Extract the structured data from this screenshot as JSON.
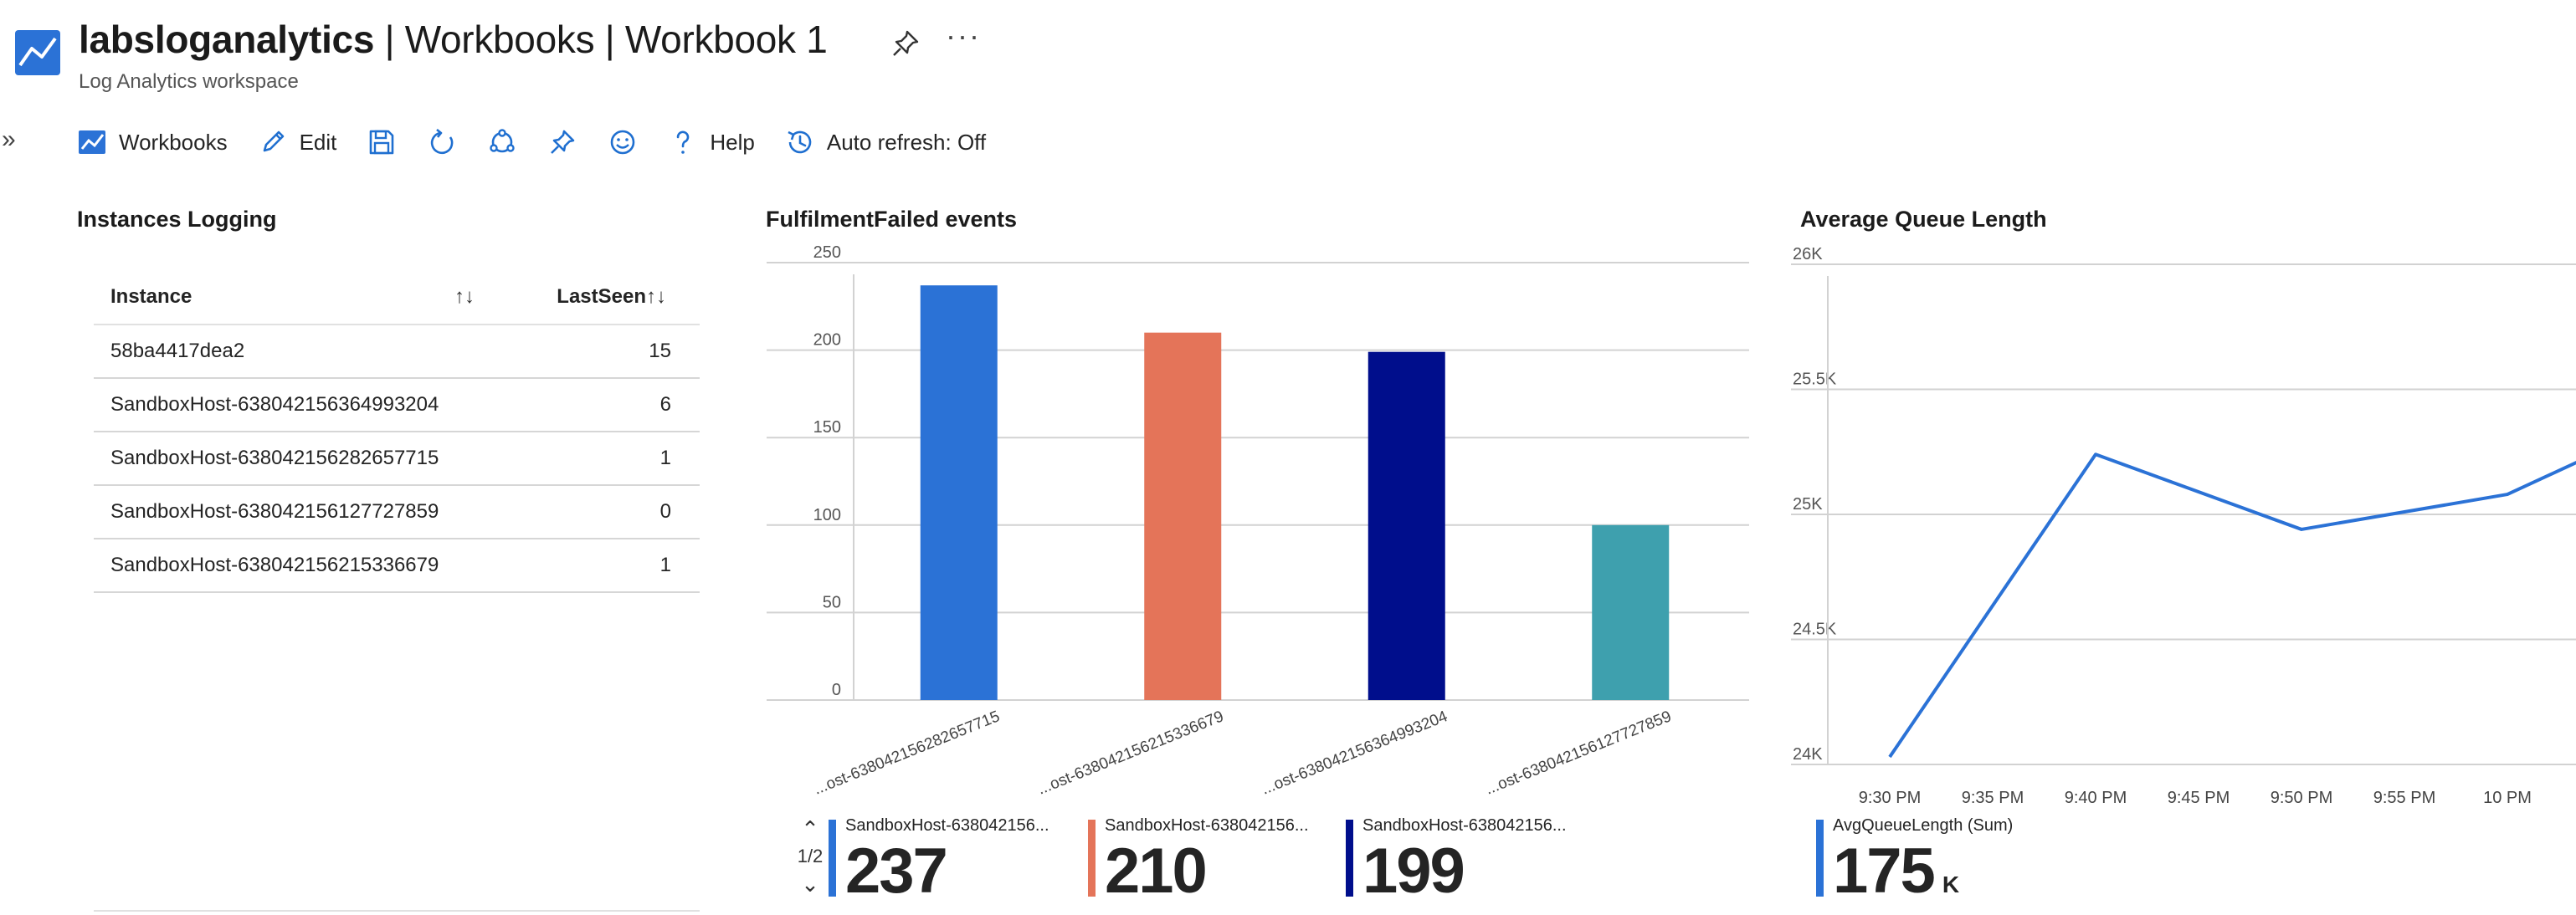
{
  "header": {
    "title_bold": "labsloganalytics",
    "title_rest": " | Workbooks | Workbook 1",
    "more": "···",
    "subtitle": "Log Analytics workspace"
  },
  "toolbar": {
    "collapse": "»",
    "workbooks_label": "Workbooks",
    "edit_label": "Edit",
    "help_label": "Help",
    "auto_refresh_label": "Auto refresh: Off"
  },
  "instances_panel": {
    "title": "Instances Logging",
    "columns": [
      "Instance",
      "LastSeen"
    ],
    "sort_glyph": "↑↓",
    "rows": [
      {
        "instance": "58ba4417dea2",
        "last_seen": "15"
      },
      {
        "instance": "SandboxHost-638042156364993204",
        "last_seen": "6"
      },
      {
        "instance": "SandboxHost-638042156282657715",
        "last_seen": "1"
      },
      {
        "instance": "SandboxHost-638042156127727859",
        "last_seen": "0"
      },
      {
        "instance": "SandboxHost-638042156215336679",
        "last_seen": "1"
      }
    ]
  },
  "fulfilment_panel": {
    "title": "FulfilmentFailed events",
    "pager": {
      "up": "⌃",
      "text": "1/2",
      "down": "⌄"
    },
    "tiles": [
      {
        "label": "SandboxHost-638042156...",
        "value": "237",
        "color": "#2b72d6"
      },
      {
        "label": "SandboxHost-638042156...",
        "value": "210",
        "color": "#e47459"
      },
      {
        "label": "SandboxHost-638042156...",
        "value": "199",
        "color": "#000e8c"
      }
    ]
  },
  "queue_panel": {
    "title": "Average Queue Length",
    "tile": {
      "label": "AvgQueueLength (Sum)",
      "value": "175",
      "unit": "K",
      "color": "#2b72d6"
    }
  },
  "chart_data": [
    {
      "type": "bar",
      "title": "FulfilmentFailed events",
      "categories": [
        "SandboxHost-638042156282657715",
        "SandboxHost-638042156215336679",
        "SandboxHost-638042156364993204",
        "SandboxHost-638042156127727859"
      ],
      "category_labels": [
        "...ost-638042156282657715",
        "...ost-638042156215336679",
        "...ost-638042156364993204",
        "...ost-638042156127727859"
      ],
      "values": [
        237,
        210,
        199,
        100
      ],
      "colors": [
        "#2b72d6",
        "#e47459",
        "#000e8c",
        "#3ea0ae"
      ],
      "yticks": [
        "0",
        "50",
        "100",
        "150",
        "200",
        "250"
      ],
      "ylim": [
        0,
        250
      ],
      "grid": true
    },
    {
      "type": "line",
      "title": "Average Queue Length",
      "series": [
        {
          "x": [
            "9:30 PM",
            "9:40 PM",
            "9:50 PM",
            "10 PM",
            "10:05 PM"
          ],
          "x_minutes": [
            0,
            10,
            20,
            30,
            35
          ],
          "values": [
            24030,
            25240,
            24940,
            25080,
            25270
          ],
          "color": "#2b72d6"
        }
      ],
      "xticks": [
        "9:30 PM",
        "9:35 PM",
        "9:40 PM",
        "9:45 PM",
        "9:50 PM",
        "9:55 PM",
        "10 PM"
      ],
      "yticks": [
        "24K",
        "24.5K",
        "25K",
        "25.5K",
        "26K"
      ],
      "ylim": [
        24000,
        26000
      ],
      "grid": true
    }
  ]
}
